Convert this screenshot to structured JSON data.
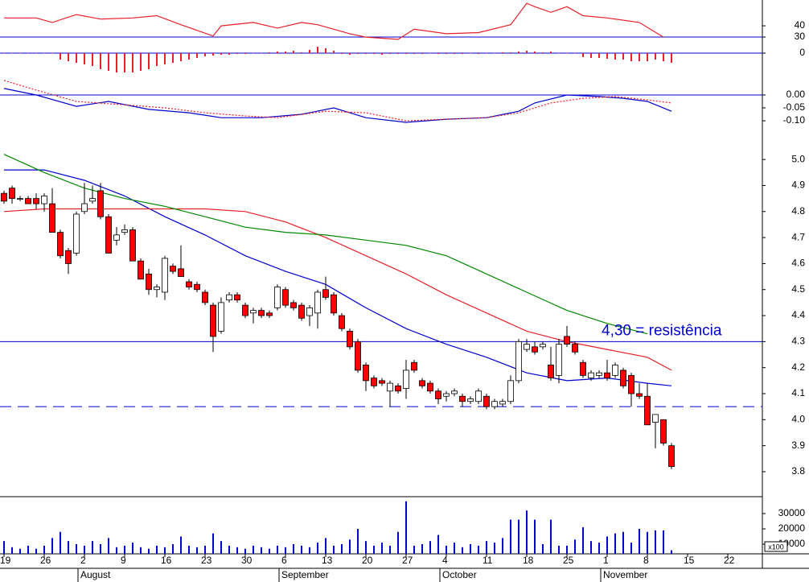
{
  "chart_data": [
    {
      "type": "line",
      "ylim": [
        22.9,
        62.9
      ],
      "yticks": [
        30,
        40
      ],
      "hlines": [
        {
          "value": 30,
          "color": "#0000cc",
          "dash": false
        }
      ],
      "series": [
        {
          "color": "#e8202a",
          "dash": false,
          "x": [
            0,
            4,
            6,
            9,
            12,
            16,
            19,
            22,
            26,
            27,
            31,
            34,
            37,
            39,
            43,
            45,
            49,
            51,
            55,
            59,
            63,
            65,
            66,
            68,
            70,
            72,
            75,
            79,
            82
          ],
          "values": [
            47,
            47,
            43,
            50,
            46,
            47,
            49,
            41,
            31,
            40,
            43,
            38,
            43,
            41,
            33,
            30,
            28,
            37,
            33,
            34,
            41,
            60,
            57,
            52,
            57,
            49,
            47,
            43,
            30
          ]
        }
      ]
    },
    {
      "type": "bar",
      "ylim": [
        -34,
        10
      ],
      "yticks": [
        0
      ],
      "color": "#e8202a",
      "hlines": [
        {
          "value": 0,
          "color": "#0000cc",
          "dash": false
        }
      ],
      "values": [
        0,
        0,
        0,
        0,
        0,
        0,
        0,
        -8,
        -10,
        -12,
        -14,
        -16,
        -20,
        -22,
        -24,
        -24,
        -24,
        -22,
        -20,
        -16,
        -14,
        -12,
        -10,
        -8,
        -6,
        -4,
        -3,
        -2,
        -2,
        -1,
        -1,
        0,
        0,
        1,
        2,
        2,
        3,
        1,
        4,
        8,
        6,
        3,
        -1,
        -2,
        -1,
        -1,
        -1,
        -2,
        -1,
        -1,
        -1,
        -1,
        -1,
        0,
        -1,
        -1,
        -1,
        -1,
        0,
        -1,
        0,
        0,
        1,
        1,
        2,
        3,
        2,
        1,
        2,
        0,
        0,
        0,
        -5,
        -6,
        -6,
        -7,
        -8,
        -8,
        -10,
        -10,
        -10,
        -8,
        -10,
        -12
      ]
    },
    {
      "type": "line",
      "ylim": [
        -0.131,
        0.056
      ],
      "yticks": [
        {
          "value": 0,
          "label": "0.00"
        },
        {
          "value": -0.05,
          "label": "-0.05"
        },
        {
          "value": -0.1,
          "label": "-0.10"
        }
      ],
      "hlines": [
        {
          "value": 0,
          "color": "#0000cc",
          "dash": false
        }
      ],
      "series": [
        {
          "color": "#0000cc",
          "dash": false,
          "x": [
            0,
            4,
            9,
            13,
            18,
            23,
            27,
            32,
            37,
            41,
            45,
            50,
            55,
            60,
            64,
            66,
            70,
            74,
            77,
            80,
            83
          ],
          "values": [
            0.025,
            0,
            -0.044,
            -0.025,
            -0.056,
            -0.069,
            -0.088,
            -0.088,
            -0.075,
            -0.05,
            -0.088,
            -0.106,
            -0.094,
            -0.088,
            -0.063,
            -0.031,
            0,
            -0.006,
            -0.013,
            -0.025,
            -0.063
          ]
        },
        {
          "color": "#e8202a",
          "dash": true,
          "x": [
            0,
            4,
            9,
            15,
            20,
            25,
            30,
            34,
            40,
            45,
            50,
            55,
            60,
            64,
            68,
            72,
            76,
            80,
            83
          ],
          "values": [
            0.056,
            0.019,
            -0.025,
            -0.038,
            -0.05,
            -0.069,
            -0.081,
            -0.088,
            -0.063,
            -0.069,
            -0.1,
            -0.094,
            -0.088,
            -0.069,
            -0.031,
            -0.013,
            -0.006,
            -0.019,
            -0.031
          ]
        }
      ]
    },
    {
      "type": "candlestick",
      "ylim": [
        3.704,
        5.118
      ],
      "up_color": "#ffffff",
      "down_color": "#ff0000",
      "yticks": [
        3.8,
        3.9,
        {
          "value": 4,
          "label": "4.0"
        },
        4.1,
        4.2,
        4.3,
        4.4,
        4.5,
        4.6,
        4.7,
        4.8,
        4.9,
        {
          "value": 5,
          "label": "5.0"
        }
      ],
      "open": [
        4.87,
        4.89,
        4.85,
        4.85,
        4.85,
        4.83,
        4.83,
        4.72,
        4.65,
        4.64,
        4.8,
        4.84,
        4.88,
        4.78,
        4.69,
        4.72,
        4.73,
        4.61,
        4.56,
        4.5,
        4.49,
        4.59,
        4.58,
        4.53,
        4.52,
        4.49,
        4.44,
        4.34,
        4.46,
        4.48,
        4.44,
        4.41,
        4.42,
        4.41,
        4.43,
        4.5,
        4.45,
        4.44,
        4.4,
        4.41,
        4.5,
        4.48,
        4.4,
        4.34,
        4.3,
        4.21,
        4.16,
        4.15,
        4.11,
        4.13,
        4.12,
        4.22,
        4.15,
        4.14,
        4.11,
        4.09,
        4.1,
        4.09,
        4.07,
        4.07,
        4.09,
        4.05,
        4.06,
        4.07,
        4.15,
        4.27,
        4.28,
        4.28,
        4.21,
        4.17,
        4.32,
        4.29,
        4.22,
        4.16,
        4.17,
        4.18,
        4.17,
        4.19,
        4.17,
        4.1,
        4.09,
        3.99,
        4,
        3.9
      ],
      "high": [
        4.88,
        4.9,
        4.86,
        4.86,
        4.87,
        4.87,
        4.89,
        4.73,
        4.66,
        4.8,
        4.91,
        4.9,
        4.91,
        4.79,
        4.74,
        4.75,
        4.74,
        4.62,
        4.58,
        4.52,
        4.63,
        4.6,
        4.67,
        4.54,
        4.53,
        4.5,
        4.45,
        4.47,
        4.49,
        4.49,
        4.45,
        4.43,
        4.43,
        4.42,
        4.52,
        4.51,
        4.46,
        4.45,
        4.44,
        4.5,
        4.55,
        4.49,
        4.41,
        4.35,
        4.31,
        4.22,
        4.17,
        4.16,
        4.15,
        4.14,
        4.23,
        4.23,
        4.16,
        4.15,
        4.12,
        4.11,
        4.12,
        4.1,
        4.09,
        4.12,
        4.1,
        4.08,
        4.08,
        4.17,
        4.31,
        4.31,
        4.3,
        4.3,
        4.28,
        4.31,
        4.36,
        4.3,
        4.23,
        4.19,
        4.19,
        4.23,
        4.22,
        4.2,
        4.18,
        4.14,
        4.14,
        4.02,
        4,
        3.91
      ],
      "low": [
        4.83,
        4.83,
        4.84,
        4.83,
        4.81,
        4.8,
        4.72,
        4.62,
        4.56,
        4.63,
        4.79,
        4.83,
        4.77,
        4.64,
        4.67,
        4.71,
        4.61,
        4.54,
        4.48,
        4.47,
        4.46,
        4.56,
        4.55,
        4.5,
        4.49,
        4.44,
        4.26,
        4.33,
        4.45,
        4.45,
        4.39,
        4.37,
        4.39,
        4.39,
        4.42,
        4.43,
        4.42,
        4.38,
        4.36,
        4.35,
        4.46,
        4.4,
        4.34,
        4.27,
        4.18,
        4.11,
        4.12,
        4.13,
        4.05,
        4.1,
        4.08,
        4.18,
        4.12,
        4.1,
        4.06,
        4.07,
        4.09,
        4.05,
        4.06,
        4.06,
        4.04,
        4.04,
        4.05,
        4.06,
        4.14,
        4.26,
        4.25,
        4.27,
        4.15,
        4.14,
        4.28,
        4.25,
        4.16,
        4.15,
        4.16,
        4.15,
        4.16,
        4.12,
        4.05,
        4.08,
        3.98,
        3.89,
        3.9,
        3.81
      ],
      "close": [
        4.84,
        4.85,
        4.85,
        4.83,
        4.83,
        4.86,
        4.72,
        4.63,
        4.6,
        4.79,
        4.83,
        4.85,
        4.78,
        4.64,
        4.71,
        4.73,
        4.61,
        4.54,
        4.5,
        4.51,
        4.62,
        4.57,
        4.55,
        4.51,
        4.5,
        4.45,
        4.32,
        4.45,
        4.48,
        4.46,
        4.4,
        4.42,
        4.4,
        4.4,
        4.51,
        4.44,
        4.43,
        4.39,
        4.43,
        4.49,
        4.47,
        4.41,
        4.35,
        4.28,
        4.19,
        4.15,
        4.13,
        4.14,
        4.14,
        4.11,
        4.19,
        4.19,
        4.13,
        4.11,
        4.08,
        4.1,
        4.11,
        4.07,
        4.08,
        4.11,
        4.05,
        4.07,
        4.07,
        4.15,
        4.3,
        4.29,
        4.26,
        4.29,
        4.16,
        4.29,
        4.29,
        4.26,
        4.17,
        4.18,
        4.18,
        4.16,
        4.21,
        4.13,
        4.1,
        4.09,
        3.98,
        4.02,
        3.91,
        3.82
      ],
      "series": [
        {
          "color": "#0000cc",
          "dash": false,
          "x": [
            0,
            5,
            10,
            15,
            20,
            25,
            30,
            35,
            40,
            45,
            50,
            55,
            60,
            65,
            70,
            75,
            80,
            83
          ],
          "values": [
            4.96,
            4.96,
            4.92,
            4.86,
            4.78,
            4.71,
            4.63,
            4.57,
            4.52,
            4.43,
            4.35,
            4.29,
            4.24,
            4.18,
            4.15,
            4.16,
            4.14,
            4.13
          ]
        },
        {
          "color": "#e8202a",
          "dash": false,
          "x": [
            0,
            5,
            10,
            15,
            20,
            25,
            30,
            35,
            40,
            45,
            50,
            55,
            60,
            65,
            70,
            75,
            80,
            83
          ],
          "values": [
            4.8,
            4.81,
            4.81,
            4.81,
            4.81,
            4.81,
            4.8,
            4.76,
            4.7,
            4.63,
            4.56,
            4.48,
            4.41,
            4.34,
            4.3,
            4.27,
            4.24,
            4.19
          ]
        },
        {
          "color": "#008800",
          "dash": false,
          "x": [
            0,
            5,
            10,
            15,
            20,
            25,
            30,
            35,
            40,
            45,
            50,
            55,
            60,
            65,
            70,
            75,
            80
          ],
          "values": [
            5.02,
            4.95,
            4.89,
            4.85,
            4.82,
            4.78,
            4.74,
            4.72,
            4.71,
            4.69,
            4.67,
            4.63,
            4.56,
            4.49,
            4.42,
            4.37,
            4.33
          ]
        }
      ],
      "hlines": [
        {
          "value": 4.3,
          "color": "#0000cc",
          "dash": false
        },
        {
          "value": 4.05,
          "color": "#0000cc",
          "dash": true
        }
      ],
      "annotation": "4,30 = resistência",
      "annotation_color": "#0000cc"
    },
    {
      "type": "bar",
      "ylim": [
        3684,
        40000
      ],
      "yticks": [
        10000,
        20000,
        30000
      ],
      "color": "#0000cc",
      "y_unit": "x100",
      "values": [
        12000,
        8000,
        7000,
        9000,
        7000,
        9000,
        14000,
        18000,
        12000,
        10000,
        9000,
        12000,
        10000,
        14000,
        8000,
        9000,
        11000,
        8000,
        7000,
        9000,
        8000,
        10000,
        15000,
        9000,
        8000,
        9000,
        17000,
        12000,
        9000,
        8000,
        7000,
        9000,
        8000,
        7000,
        9000,
        8000,
        10000,
        9000,
        8000,
        11000,
        14000,
        9000,
        10000,
        13000,
        20000,
        12000,
        9000,
        11000,
        9000,
        18000,
        38000,
        9000,
        10000,
        12000,
        16000,
        9000,
        11000,
        8000,
        10000,
        9000,
        12000,
        11000,
        14000,
        26000,
        26000,
        32000,
        26000,
        10000,
        26000,
        9000,
        9000,
        13000,
        21000,
        12000,
        11000,
        15000,
        17000,
        18000,
        11000,
        20000,
        18000,
        19000,
        19000,
        6000
      ],
      "xlim": [
        -0.5,
        94.3
      ],
      "xticks": [
        {
          "value": 0,
          "label": "19"
        },
        {
          "value": 5,
          "label": "26"
        },
        {
          "value": 10,
          "label": "2"
        },
        {
          "value": 15,
          "label": "9"
        },
        {
          "value": 20,
          "label": "16"
        },
        {
          "value": 25,
          "label": "23"
        },
        {
          "value": 30,
          "label": "30"
        },
        {
          "value": 35,
          "label": "6"
        },
        {
          "value": 40,
          "label": "13"
        },
        {
          "value": 45,
          "label": "20"
        },
        {
          "value": 50,
          "label": "27"
        },
        {
          "value": 55,
          "label": "4"
        },
        {
          "value": 60,
          "label": "11"
        },
        {
          "value": 65,
          "label": "18"
        },
        {
          "value": 70,
          "label": "25"
        },
        {
          "value": 75,
          "label": "1"
        },
        {
          "value": 80,
          "label": "8"
        },
        {
          "value": 85,
          "label": "15"
        },
        {
          "value": 90,
          "label": "22"
        }
      ],
      "month_ticks": [
        {
          "value": 10,
          "label": "August"
        },
        {
          "value": 35,
          "label": "September"
        },
        {
          "value": 55,
          "label": "October"
        },
        {
          "value": 75,
          "label": "November"
        }
      ]
    }
  ]
}
